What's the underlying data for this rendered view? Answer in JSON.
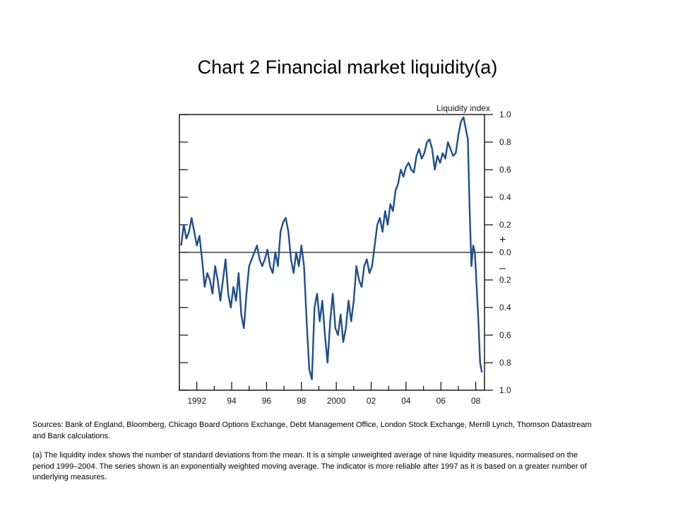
{
  "title": "Chart 2  Financial market liquidity(a)",
  "notes": {
    "sources": "Sources:  Bank of England, Bloomberg, Chicago Board Options Exchange, Debt Management Office, London Stock Exchange, Merrill Lynch, Thomson Datastream and Bank calculations.",
    "footnote": "(a)  The liquidity index shows the number of standard deviations from the mean.  It is a simple unweighted average of nine liquidity measures, normalised on the period 1999–2004.  The series shown is an exponentially weighted moving average.  The indicator is more reliable after 1997 as it is based on a greater number of underlying measures."
  },
  "chart_data": {
    "type": "line",
    "title": "",
    "xlabel": "",
    "ylabel": "Liquidity index",
    "xlim": [
      1991.0,
      2008.5
    ],
    "ylim": [
      -1.0,
      1.0
    ],
    "x_tick_values": [
      1992,
      1994,
      1996,
      1998,
      2000,
      2002,
      2004,
      2006,
      2008
    ],
    "x_tick_labels": [
      "1992",
      "94",
      "96",
      "98",
      "2000",
      "02",
      "04",
      "06",
      "08"
    ],
    "y_tick_values": [
      1.0,
      0.8,
      0.6,
      0.4,
      0.2,
      0.0,
      -0.2,
      -0.4,
      -0.6,
      -0.8,
      -1.0
    ],
    "y_tick_labels": [
      "1.0",
      "0.8",
      "0.6",
      "0.4",
      "0.2",
      "0.0",
      "0.2",
      "0.4",
      "0.6",
      "0.8",
      "1.0"
    ],
    "sign_labels": [
      "+",
      "–"
    ],
    "zero_line": true,
    "grid": false,
    "series": [
      {
        "color": "#1f4e8c",
        "x": [
          1991.1,
          1991.25,
          1991.4,
          1991.55,
          1991.7,
          1991.85,
          1992.0,
          1992.15,
          1992.3,
          1992.45,
          1992.6,
          1992.75,
          1992.9,
          1993.05,
          1993.2,
          1993.35,
          1993.5,
          1993.65,
          1993.8,
          1993.95,
          1994.1,
          1994.25,
          1994.4,
          1994.55,
          1994.7,
          1994.85,
          1995.0,
          1995.15,
          1995.3,
          1995.45,
          1995.6,
          1995.75,
          1995.9,
          1996.05,
          1996.2,
          1996.35,
          1996.5,
          1996.65,
          1996.8,
          1996.95,
          1997.1,
          1997.25,
          1997.4,
          1997.55,
          1997.7,
          1997.85,
          1998.0,
          1998.15,
          1998.3,
          1998.45,
          1998.6,
          1998.75,
          1998.9,
          1999.05,
          1999.2,
          1999.35,
          1999.5,
          1999.65,
          1999.8,
          1999.95,
          2000.1,
          2000.25,
          2000.4,
          2000.55,
          2000.7,
          2000.85,
          2001.0,
          2001.15,
          2001.3,
          2001.45,
          2001.6,
          2001.75,
          2001.9,
          2002.05,
          2002.2,
          2002.35,
          2002.5,
          2002.65,
          2002.8,
          2002.95,
          2003.1,
          2003.25,
          2003.4,
          2003.55,
          2003.7,
          2003.85,
          2004.0,
          2004.15,
          2004.3,
          2004.45,
          2004.6,
          2004.75,
          2004.9,
          2005.05,
          2005.2,
          2005.35,
          2005.5,
          2005.65,
          2005.8,
          2005.95,
          2006.1,
          2006.25,
          2006.4,
          2006.55,
          2006.7,
          2006.85,
          2007.0,
          2007.15,
          2007.3,
          2007.45,
          2007.55,
          2007.65,
          2007.75,
          2007.85,
          2007.95,
          2008.05,
          2008.15,
          2008.25,
          2008.35
        ],
        "y": [
          0.05,
          0.2,
          0.1,
          0.15,
          0.25,
          0.15,
          0.05,
          0.12,
          -0.05,
          -0.25,
          -0.15,
          -0.2,
          -0.3,
          -0.1,
          -0.2,
          -0.35,
          -0.2,
          -0.05,
          -0.3,
          -0.4,
          -0.25,
          -0.35,
          -0.15,
          -0.45,
          -0.55,
          -0.3,
          -0.1,
          -0.05,
          0.0,
          0.05,
          -0.05,
          -0.1,
          -0.05,
          0.02,
          -0.1,
          -0.15,
          0.0,
          -0.1,
          0.15,
          0.22,
          0.25,
          0.15,
          -0.05,
          -0.15,
          0.0,
          -0.1,
          0.05,
          -0.1,
          -0.5,
          -0.85,
          -0.92,
          -0.4,
          -0.3,
          -0.5,
          -0.35,
          -0.6,
          -0.8,
          -0.5,
          -0.3,
          -0.55,
          -0.6,
          -0.45,
          -0.65,
          -0.55,
          -0.35,
          -0.5,
          -0.35,
          -0.1,
          -0.2,
          -0.25,
          -0.1,
          -0.05,
          -0.15,
          -0.1,
          0.05,
          0.2,
          0.25,
          0.15,
          0.3,
          0.2,
          0.35,
          0.3,
          0.45,
          0.5,
          0.6,
          0.55,
          0.62,
          0.65,
          0.6,
          0.58,
          0.7,
          0.75,
          0.68,
          0.72,
          0.8,
          0.82,
          0.75,
          0.6,
          0.7,
          0.65,
          0.72,
          0.68,
          0.8,
          0.75,
          0.7,
          0.72,
          0.85,
          0.95,
          0.98,
          0.88,
          0.82,
          0.3,
          -0.1,
          0.05,
          0.0,
          -0.25,
          -0.5,
          -0.8,
          -0.87
        ]
      }
    ]
  }
}
